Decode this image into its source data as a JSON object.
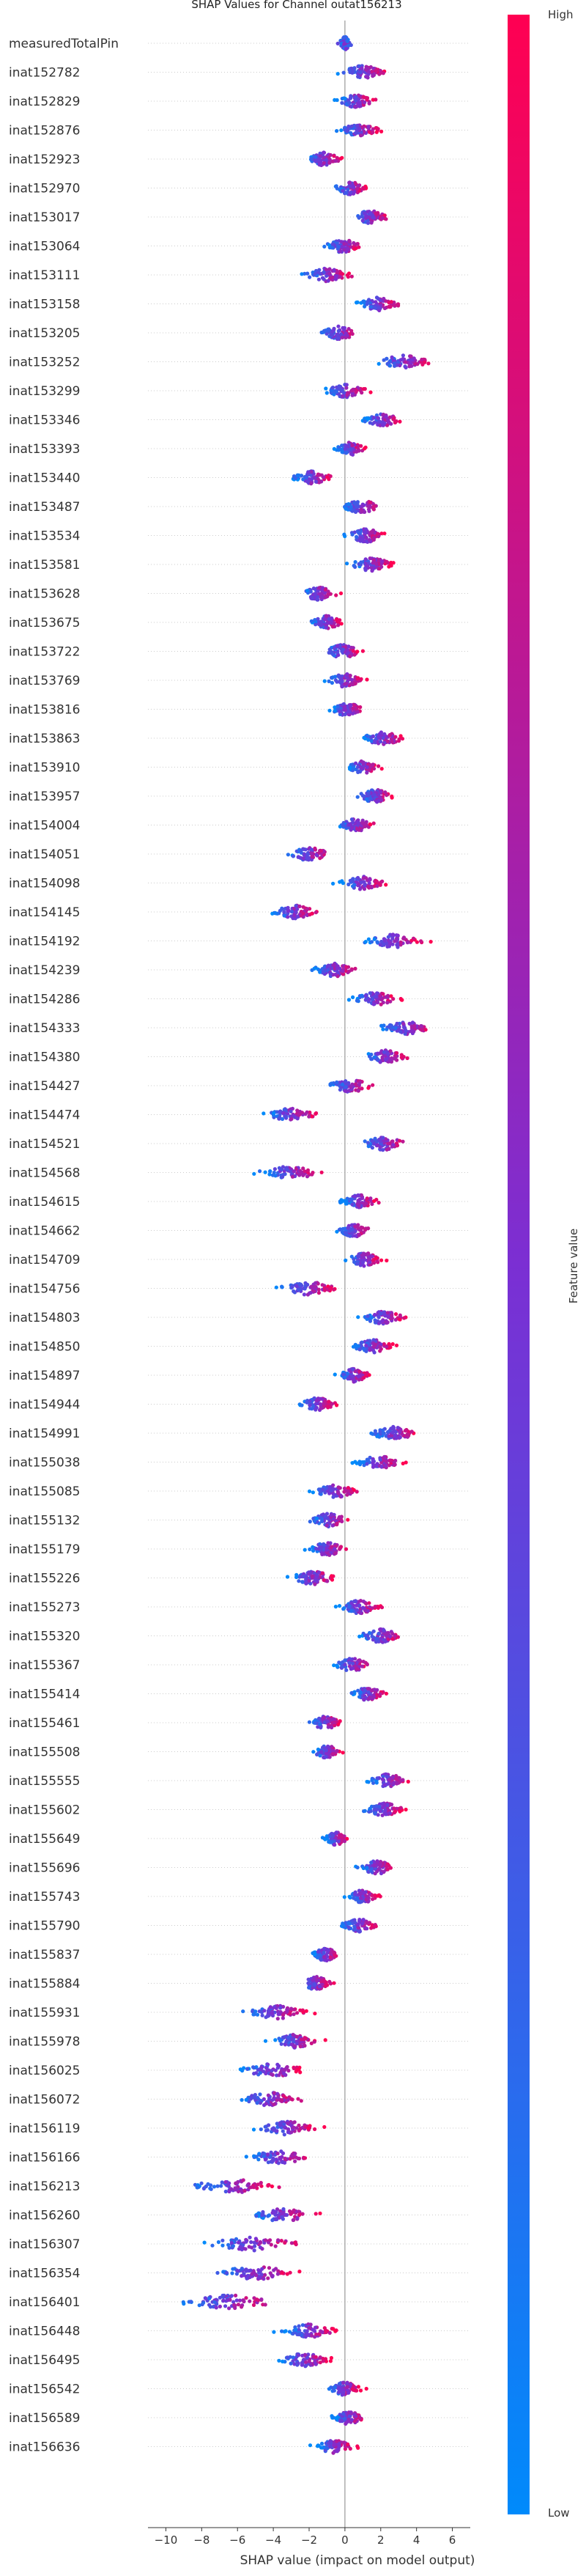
{
  "chart_data": {
    "type": "scatter",
    "subtype": "shap_beeswarm",
    "title": "SHAP Values for Channel outat156213",
    "xlabel": "SHAP value (impact on model output)",
    "ylabel": "",
    "xlim": [
      -11,
      7
    ],
    "xticks": [
      -10,
      -8,
      -6,
      -4,
      -2,
      0,
      2,
      4,
      6
    ],
    "xtick_labels": [
      "−10",
      "−8",
      "−6",
      "−4",
      "−2",
      "0",
      "2",
      "4",
      "6"
    ],
    "grid": false,
    "colorbar": {
      "label": "Feature value",
      "high_label": "High",
      "low_label": "Low",
      "low_color": "#008afb",
      "mid_color": "#7b2fd3",
      "high_color": "#ff0052"
    },
    "features": [
      {
        "name": "measuredTotalPin",
        "center": 0,
        "spread": 0.3,
        "direction": 0
      },
      {
        "name": "inat152782",
        "center": 1.0,
        "spread": 1.1,
        "direction": 1
      },
      {
        "name": "inat152829",
        "center": 0.6,
        "spread": 0.9,
        "direction": 1
      },
      {
        "name": "inat152876",
        "center": 0.8,
        "spread": 1.0,
        "direction": 1
      },
      {
        "name": "inat152923",
        "center": -1.2,
        "spread": 0.9,
        "direction": 1
      },
      {
        "name": "inat152970",
        "center": 0.3,
        "spread": 0.8,
        "direction": 1
      },
      {
        "name": "inat153017",
        "center": 1.4,
        "spread": 0.9,
        "direction": 1
      },
      {
        "name": "inat153064",
        "center": -0.1,
        "spread": 0.9,
        "direction": 1
      },
      {
        "name": "inat153111",
        "center": -1.0,
        "spread": 1.2,
        "direction": 1
      },
      {
        "name": "inat153158",
        "center": 1.9,
        "spread": 1.0,
        "direction": 1
      },
      {
        "name": "inat153205",
        "center": -0.3,
        "spread": 1.0,
        "direction": 1
      },
      {
        "name": "inat153252",
        "center": 3.3,
        "spread": 1.4,
        "direction": 1
      },
      {
        "name": "inat153299",
        "center": 0.0,
        "spread": 1.1,
        "direction": 1
      },
      {
        "name": "inat153346",
        "center": 2.1,
        "spread": 1.0,
        "direction": 1
      },
      {
        "name": "inat153393",
        "center": 0.3,
        "spread": 0.7,
        "direction": 1
      },
      {
        "name": "inat153440",
        "center": -1.8,
        "spread": 1.0,
        "direction": 1
      },
      {
        "name": "inat153487",
        "center": 0.9,
        "spread": 1.0,
        "direction": 1
      },
      {
        "name": "inat153534",
        "center": 1.2,
        "spread": 1.0,
        "direction": 1
      },
      {
        "name": "inat153581",
        "center": 1.5,
        "spread": 1.1,
        "direction": 1
      },
      {
        "name": "inat153628",
        "center": -1.5,
        "spread": 0.9,
        "direction": 1
      },
      {
        "name": "inat153675",
        "center": -1.0,
        "spread": 0.8,
        "direction": 1
      },
      {
        "name": "inat153722",
        "center": -0.1,
        "spread": 1.0,
        "direction": 1
      },
      {
        "name": "inat153769",
        "center": 0.0,
        "spread": 0.9,
        "direction": 1
      },
      {
        "name": "inat153816",
        "center": 0.1,
        "spread": 0.9,
        "direction": 1
      },
      {
        "name": "inat153863",
        "center": 2.1,
        "spread": 1.1,
        "direction": 1
      },
      {
        "name": "inat153910",
        "center": 1.0,
        "spread": 0.8,
        "direction": 1
      },
      {
        "name": "inat153957",
        "center": 1.7,
        "spread": 0.9,
        "direction": 1
      },
      {
        "name": "inat154004",
        "center": 0.6,
        "spread": 0.9,
        "direction": 1
      },
      {
        "name": "inat154051",
        "center": -2.0,
        "spread": 1.1,
        "direction": 1
      },
      {
        "name": "inat154098",
        "center": 1.0,
        "spread": 1.1,
        "direction": 1
      },
      {
        "name": "inat154145",
        "center": -2.8,
        "spread": 1.1,
        "direction": 1
      },
      {
        "name": "inat154192",
        "center": 2.7,
        "spread": 1.4,
        "direction": 1
      },
      {
        "name": "inat154239",
        "center": -0.6,
        "spread": 1.1,
        "direction": 1
      },
      {
        "name": "inat154286",
        "center": 1.7,
        "spread": 1.1,
        "direction": 1
      },
      {
        "name": "inat154333",
        "center": 3.4,
        "spread": 1.4,
        "direction": 1
      },
      {
        "name": "inat154380",
        "center": 2.2,
        "spread": 1.1,
        "direction": 1
      },
      {
        "name": "inat154427",
        "center": 0.3,
        "spread": 1.1,
        "direction": 1
      },
      {
        "name": "inat154474",
        "center": -3.0,
        "spread": 1.2,
        "direction": 1
      },
      {
        "name": "inat154521",
        "center": 2.2,
        "spread": 1.2,
        "direction": 1
      },
      {
        "name": "inat154568",
        "center": -3.0,
        "spread": 1.5,
        "direction": 1
      },
      {
        "name": "inat154615",
        "center": 0.8,
        "spread": 0.9,
        "direction": 1
      },
      {
        "name": "inat154662",
        "center": 0.5,
        "spread": 0.8,
        "direction": 1
      },
      {
        "name": "inat154709",
        "center": 1.1,
        "spread": 0.9,
        "direction": 1
      },
      {
        "name": "inat154756",
        "center": -2.0,
        "spread": 1.4,
        "direction": 1
      },
      {
        "name": "inat154803",
        "center": 2.1,
        "spread": 1.1,
        "direction": 1
      },
      {
        "name": "inat154850",
        "center": 1.6,
        "spread": 1.1,
        "direction": 1
      },
      {
        "name": "inat154897",
        "center": 0.5,
        "spread": 0.8,
        "direction": 1
      },
      {
        "name": "inat154944",
        "center": -1.5,
        "spread": 0.9,
        "direction": 1
      },
      {
        "name": "inat154991",
        "center": 2.7,
        "spread": 1.3,
        "direction": 1
      },
      {
        "name": "inat155038",
        "center": 1.9,
        "spread": 1.1,
        "direction": 1
      },
      {
        "name": "inat155085",
        "center": -0.5,
        "spread": 1.1,
        "direction": 1
      },
      {
        "name": "inat155132",
        "center": -0.9,
        "spread": 1.0,
        "direction": 1
      },
      {
        "name": "inat155179",
        "center": -1.0,
        "spread": 1.0,
        "direction": 1
      },
      {
        "name": "inat155226",
        "center": -1.8,
        "spread": 1.2,
        "direction": 1
      },
      {
        "name": "inat155273",
        "center": 0.8,
        "spread": 1.0,
        "direction": 1
      },
      {
        "name": "inat155320",
        "center": 2.0,
        "spread": 1.1,
        "direction": 1
      },
      {
        "name": "inat155367",
        "center": 0.4,
        "spread": 0.9,
        "direction": 1
      },
      {
        "name": "inat155414",
        "center": 1.3,
        "spread": 0.9,
        "direction": 1
      },
      {
        "name": "inat155461",
        "center": -1.1,
        "spread": 0.8,
        "direction": 1
      },
      {
        "name": "inat155508",
        "center": -1.0,
        "spread": 0.7,
        "direction": 1
      },
      {
        "name": "inat155555",
        "center": 2.4,
        "spread": 1.0,
        "direction": 1
      },
      {
        "name": "inat155602",
        "center": 2.2,
        "spread": 1.0,
        "direction": 1
      },
      {
        "name": "inat155649",
        "center": -0.5,
        "spread": 0.6,
        "direction": 1
      },
      {
        "name": "inat155696",
        "center": 1.8,
        "spread": 1.0,
        "direction": 1
      },
      {
        "name": "inat155743",
        "center": 1.0,
        "spread": 0.8,
        "direction": 1
      },
      {
        "name": "inat155790",
        "center": 0.8,
        "spread": 0.9,
        "direction": 1
      },
      {
        "name": "inat155837",
        "center": -1.1,
        "spread": 0.7,
        "direction": 1
      },
      {
        "name": "inat155884",
        "center": -1.6,
        "spread": 0.8,
        "direction": 1
      },
      {
        "name": "inat155931",
        "center": -3.8,
        "spread": 1.5,
        "direction": 1
      },
      {
        "name": "inat155978",
        "center": -2.8,
        "spread": 1.2,
        "direction": 1
      },
      {
        "name": "inat156025",
        "center": -4.0,
        "spread": 1.7,
        "direction": 1
      },
      {
        "name": "inat156072",
        "center": -4.2,
        "spread": 1.6,
        "direction": 1
      },
      {
        "name": "inat156119",
        "center": -3.2,
        "spread": 1.5,
        "direction": 1
      },
      {
        "name": "inat156166",
        "center": -3.7,
        "spread": 1.7,
        "direction": 1
      },
      {
        "name": "inat156213",
        "center": -6.2,
        "spread": 2.3,
        "direction": 1
      },
      {
        "name": "inat156260",
        "center": -3.5,
        "spread": 1.6,
        "direction": 1
      },
      {
        "name": "inat156307",
        "center": -5.2,
        "spread": 2.4,
        "direction": 1
      },
      {
        "name": "inat156354",
        "center": -5.0,
        "spread": 2.2,
        "direction": 1
      },
      {
        "name": "inat156401",
        "center": -6.5,
        "spread": 2.6,
        "direction": 1
      },
      {
        "name": "inat156448",
        "center": -2.0,
        "spread": 1.3,
        "direction": 1
      },
      {
        "name": "inat156495",
        "center": -2.2,
        "spread": 1.3,
        "direction": 1
      },
      {
        "name": "inat156542",
        "center": 0.0,
        "spread": 0.8,
        "direction": 1
      },
      {
        "name": "inat156589",
        "center": 0.2,
        "spread": 0.8,
        "direction": 1
      },
      {
        "name": "inat156636",
        "center": -0.6,
        "spread": 1.0,
        "direction": 1
      }
    ]
  }
}
